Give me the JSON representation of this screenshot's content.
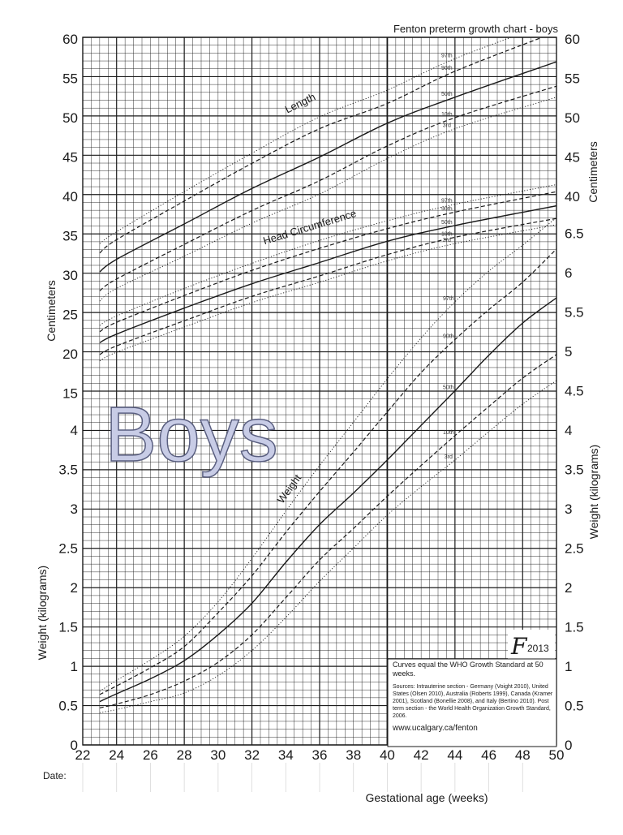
{
  "chart_data": {
    "type": "line",
    "title": "Fenton preterm growth chart - boys",
    "watermark": "Boys",
    "xlabel": "Gestational age (weeks)",
    "ylabel_left_upper": "Centimeters",
    "ylabel_left_lower": "Weight (kilograms)",
    "ylabel_right_upper": "Centimeters",
    "ylabel_right_lower": "Weight (kilograms)",
    "x_ticks": [
      "22",
      "24",
      "26",
      "28",
      "30",
      "32",
      "34",
      "36",
      "38",
      "40",
      "42",
      "44",
      "46",
      "48",
      "50"
    ],
    "y_ticks_left": [
      "0",
      "0.5",
      "1",
      "1.5",
      "2",
      "2.5",
      "3",
      "3.5",
      "4",
      "15",
      "20",
      "25",
      "30",
      "35",
      "40",
      "45",
      "50",
      "55",
      "60"
    ],
    "y_ticks_right": [
      "0",
      "0.5",
      "1",
      "1.5",
      "2",
      "2.5",
      "3",
      "3.5",
      "4",
      "4.5",
      "5",
      "5.5",
      "6",
      "6.5",
      "40",
      "45",
      "50",
      "55",
      "60"
    ],
    "xlim": [
      22,
      50
    ],
    "date_label": "Date:",
    "curve_labels": {
      "length": "Length",
      "head": "Head Circumference",
      "weight": "Weight"
    },
    "percentile_labels": [
      "97th",
      "90th",
      "50th",
      "10th",
      "3rd"
    ],
    "length_cm": {
      "x": [
        23,
        24,
        28,
        32,
        36,
        40,
        44,
        50
      ],
      "series": [
        {
          "name": "97th",
          "values": [
            34.0,
            35.5,
            40.6,
            45.5,
            50.1,
            53.5,
            57.5,
            62.3
          ]
        },
        {
          "name": "90th",
          "values": [
            32.8,
            34.5,
            39.4,
            44.2,
            48.6,
            51.8,
            55.9,
            60.9
          ]
        },
        {
          "name": "50th",
          "values": [
            30.4,
            32.0,
            36.5,
            41.0,
            45.0,
            49.3,
            52.6,
            57.1
          ]
        },
        {
          "name": "10th",
          "values": [
            28.0,
            29.5,
            33.9,
            38.2,
            42.0,
            46.4,
            50.0,
            54.0
          ]
        },
        {
          "name": "3rd",
          "values": [
            26.7,
            28.3,
            32.4,
            36.6,
            40.3,
            44.8,
            48.6,
            52.6
          ]
        }
      ]
    },
    "head_circumference_cm": {
      "x": [
        23,
        24,
        28,
        32,
        36,
        40,
        44,
        50
      ],
      "series": [
        {
          "name": "97th",
          "values": [
            23.6,
            24.8,
            28.3,
            31.5,
            34.4,
            36.9,
            39.0,
            41.5
          ]
        },
        {
          "name": "90th",
          "values": [
            22.8,
            24.0,
            27.4,
            30.6,
            33.4,
            35.9,
            38.0,
            40.6
          ]
        },
        {
          "name": "50th",
          "values": [
            21.4,
            22.5,
            25.8,
            28.9,
            31.6,
            34.3,
            36.3,
            38.8
          ]
        },
        {
          "name": "10th",
          "values": [
            19.9,
            21.0,
            24.2,
            27.3,
            29.9,
            32.6,
            34.8,
            37.2
          ]
        },
        {
          "name": "3rd",
          "values": [
            19.1,
            20.2,
            23.4,
            26.5,
            29.1,
            31.8,
            34.0,
            36.4
          ]
        }
      ]
    },
    "weight_kg": {
      "x": [
        23,
        24,
        26,
        28,
        30,
        32,
        34,
        36,
        38,
        40,
        42,
        44,
        46,
        48,
        50
      ],
      "series": [
        {
          "name": "97th",
          "values": [
            0.68,
            0.82,
            1.08,
            1.38,
            1.82,
            2.37,
            2.97,
            3.55,
            4.1,
            4.65,
            5.17,
            5.63,
            6.02,
            6.35,
            6.7
          ]
        },
        {
          "name": "90th",
          "values": [
            0.64,
            0.75,
            0.98,
            1.25,
            1.68,
            2.15,
            2.7,
            3.22,
            3.72,
            4.23,
            4.73,
            5.15,
            5.53,
            5.88,
            6.3
          ]
        },
        {
          "name": "50th",
          "values": [
            0.55,
            0.65,
            0.84,
            1.07,
            1.4,
            1.8,
            2.32,
            2.8,
            3.2,
            3.62,
            4.06,
            4.5,
            4.95,
            5.36,
            5.68
          ]
        },
        {
          "name": "10th",
          "values": [
            0.47,
            0.52,
            0.64,
            0.81,
            1.05,
            1.4,
            1.87,
            2.35,
            2.75,
            3.16,
            3.55,
            3.93,
            4.3,
            4.66,
            4.96
          ]
        },
        {
          "name": "3rd",
          "values": [
            0.41,
            0.45,
            0.55,
            0.66,
            0.88,
            1.2,
            1.62,
            2.08,
            2.5,
            2.92,
            3.28,
            3.62,
            3.98,
            4.33,
            4.63
          ]
        }
      ]
    },
    "line_styles": {
      "97th": "dotted",
      "90th": "dashed",
      "50th": "solid",
      "10th": "dashed",
      "3rd": "dotted"
    }
  },
  "logo": {
    "mark": "F",
    "year": "2013"
  },
  "info_box": {
    "heading": "Curves equal the WHO Growth Standard at 50 weeks.",
    "sources": "Sources: Intrauterine section - Germany (Voight 2010), United States (Olsen 2010), Australia (Roberts 1999), Canada (Kramer 2001), Scotland (Bonellie 2008), and Italy (Bertino 2010). Post term section - the World Health Organization Growth Standard, 2006.",
    "url": "www.ucalgary.ca/fenton"
  },
  "colors": {
    "grid": "#1a1a1a",
    "curve": "#1a1a1a",
    "watermark_fill": "#c8cce6",
    "watermark_stroke": "#5a5f80"
  }
}
